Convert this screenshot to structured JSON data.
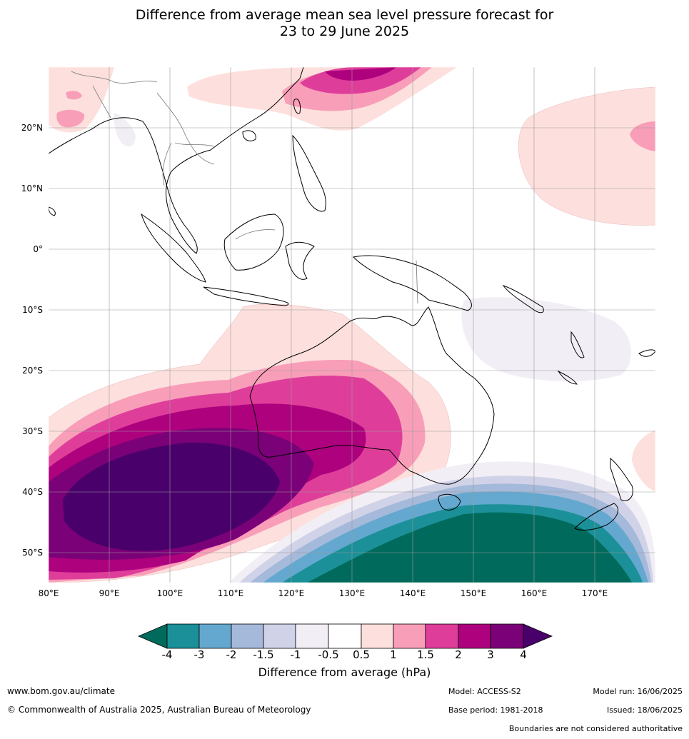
{
  "title_line1": "Difference from average mean sea level pressure forecast for",
  "title_line2": "23 to 29 June 2025",
  "map": {
    "lon_ticks": [
      "80°E",
      "90°E",
      "100°E",
      "110°E",
      "120°E",
      "130°E",
      "140°E",
      "150°E",
      "160°E",
      "170°E"
    ],
    "lat_ticks": [
      "20°N",
      "10°N",
      "0°",
      "10°S",
      "20°S",
      "30°S",
      "40°S",
      "50°S"
    ]
  },
  "legend": {
    "title": "Difference from average (hPa)",
    "tick_labels": [
      "-4",
      "-3",
      "-2",
      "-1.5",
      "-1",
      "-0.5",
      "0.5",
      "1",
      "1.5",
      "2",
      "3",
      "4"
    ],
    "colors": {
      "below_min": "#006b5c",
      "bins": [
        "#1b9098",
        "#64a8cf",
        "#a5b9da",
        "#d0d2e8",
        "#f2eef5",
        "#ffffff",
        "#fde0dd",
        "#f99eb9",
        "#de3e9a",
        "#ae017e",
        "#7a0177"
      ],
      "above_max": "#49006a"
    }
  },
  "footer": {
    "site": "www.bom.gov.au/climate",
    "copyright": "© Commonwealth of Australia 2025, Australian Bureau of Meteorology",
    "model": "Model: ACCESS-S2",
    "base_period": "Base period: 1981-2018",
    "model_run": "Model run: 16/06/2025",
    "issued": "Issued: 18/06/2025",
    "boundaries": "Boundaries are not considered authoritative"
  }
}
